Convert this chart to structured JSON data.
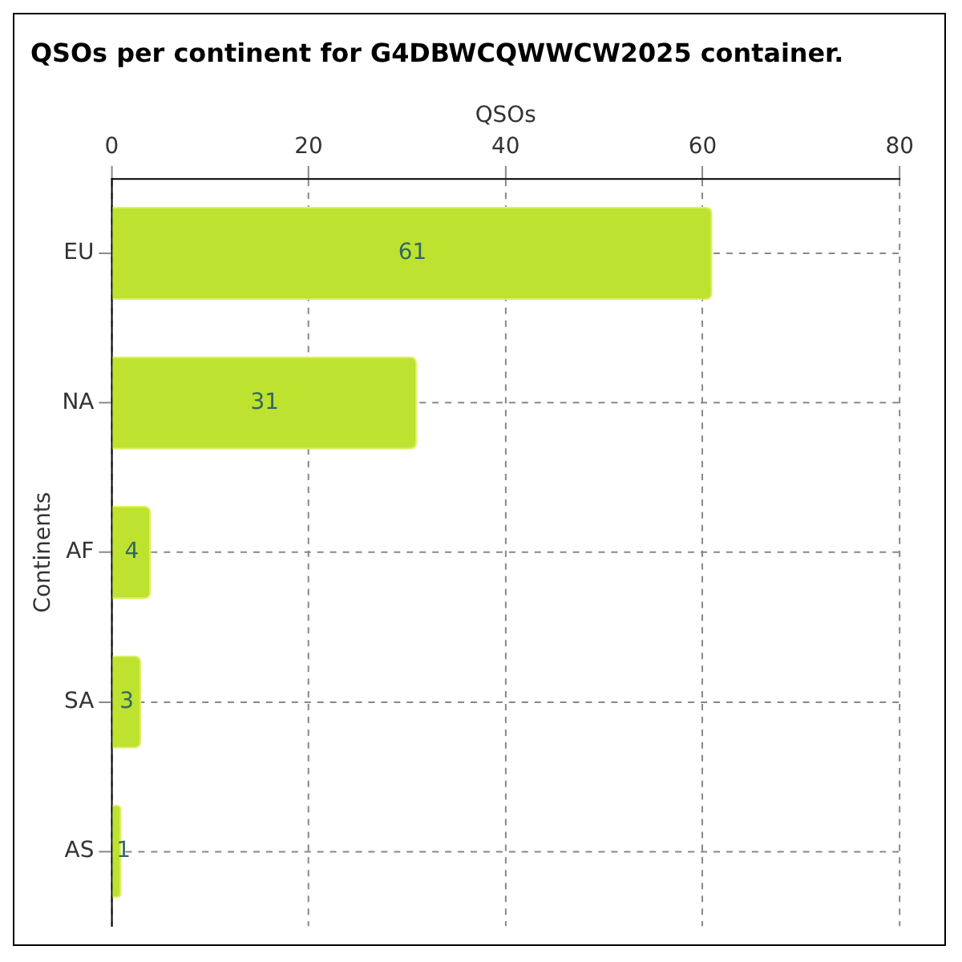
{
  "chart_data": {
    "type": "bar",
    "orientation": "horizontal",
    "title": "QSOs per continent for G4DBWCQWWCW2025 container.",
    "xlabel": "QSOs",
    "ylabel": "Continents",
    "categories": [
      "EU",
      "NA",
      "AF",
      "SA",
      "AS"
    ],
    "values": [
      61,
      31,
      4,
      3,
      1
    ],
    "color": "#bde22f",
    "xlim": [
      0,
      80
    ],
    "xticks": [
      0,
      20,
      40,
      60,
      80
    ],
    "grid": true,
    "legend": false,
    "data_labels": true
  }
}
